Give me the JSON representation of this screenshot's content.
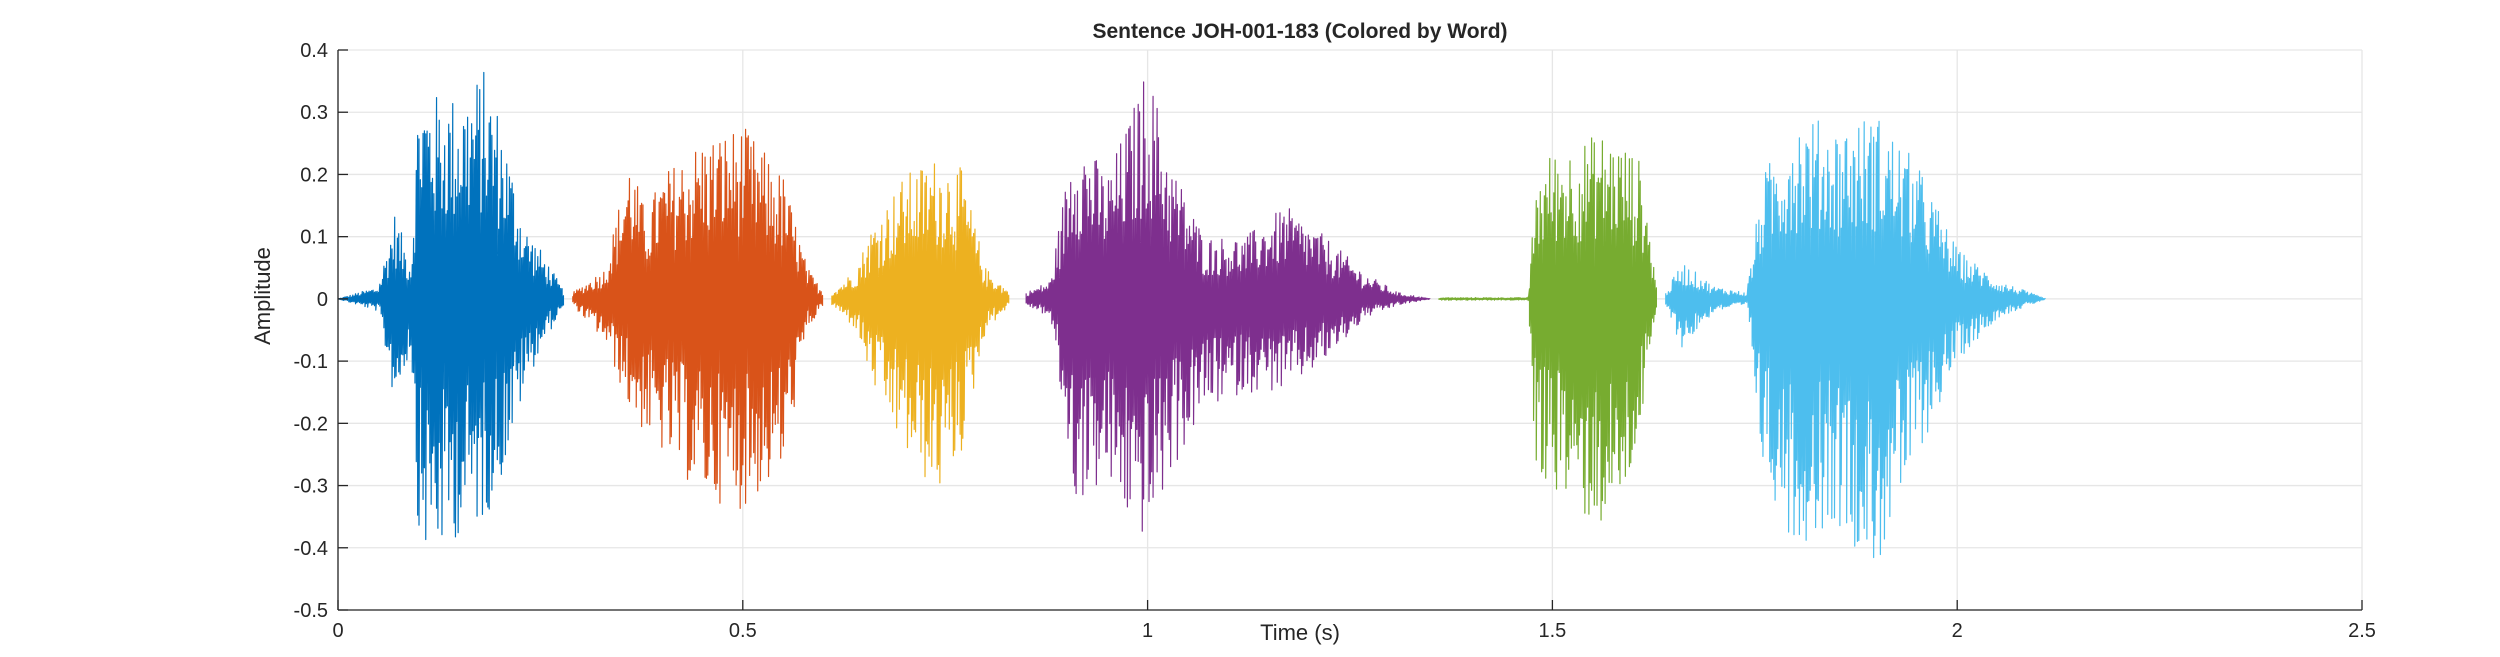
{
  "chart_data": {
    "type": "line",
    "title": "Sentence JOH-001-183 (Colored by Word)",
    "xlabel": "Time (s)",
    "ylabel": "Amplitude",
    "xlim": [
      0,
      2.5
    ],
    "ylim": [
      -0.5,
      0.4
    ],
    "xticks": [
      0,
      0.5,
      1,
      1.5,
      2,
      2.5
    ],
    "xtick_labels": [
      "0",
      "0.5",
      "1",
      "1.5",
      "2",
      "2.5"
    ],
    "yticks": [
      0.4,
      0.3,
      0.2,
      0.1,
      0,
      -0.1,
      -0.2,
      -0.3,
      -0.4,
      -0.5
    ],
    "ytick_labels": [
      "0.4",
      "0.3",
      "0.2",
      "0.1",
      "0",
      "-0.1",
      "-0.2",
      "-0.3",
      "-0.4",
      "-0.5"
    ],
    "grid": true,
    "series": [
      {
        "color": "#0072BD",
        "start": 0.0,
        "end": 0.28,
        "envelope": [
          [
            0.0,
            0.0,
            0.0
          ],
          [
            0.05,
            0.02,
            -0.02
          ],
          [
            0.07,
            0.14,
            -0.17
          ],
          [
            0.09,
            0.06,
            -0.08
          ],
          [
            0.1,
            0.35,
            -0.4
          ],
          [
            0.12,
            0.33,
            -0.42
          ],
          [
            0.15,
            0.33,
            -0.38
          ],
          [
            0.18,
            0.37,
            -0.36
          ],
          [
            0.2,
            0.3,
            -0.3
          ],
          [
            0.23,
            0.12,
            -0.15
          ],
          [
            0.25,
            0.08,
            -0.08
          ],
          [
            0.28,
            0.01,
            -0.01
          ]
        ]
      },
      {
        "color": "#D95319",
        "start": 0.29,
        "end": 0.6,
        "envelope": [
          [
            0.29,
            0.01,
            -0.01
          ],
          [
            0.33,
            0.05,
            -0.07
          ],
          [
            0.36,
            0.23,
            -0.18
          ],
          [
            0.38,
            0.14,
            -0.22
          ],
          [
            0.4,
            0.2,
            -0.25
          ],
          [
            0.45,
            0.26,
            -0.32
          ],
          [
            0.5,
            0.28,
            -0.34
          ],
          [
            0.55,
            0.2,
            -0.28
          ],
          [
            0.58,
            0.05,
            -0.05
          ],
          [
            0.6,
            0.01,
            -0.01
          ]
        ]
      },
      {
        "color": "#EDB120",
        "start": 0.61,
        "end": 0.83,
        "envelope": [
          [
            0.61,
            0.01,
            -0.01
          ],
          [
            0.64,
            0.05,
            -0.05
          ],
          [
            0.66,
            0.12,
            -0.14
          ],
          [
            0.7,
            0.2,
            -0.25
          ],
          [
            0.74,
            0.23,
            -0.32
          ],
          [
            0.77,
            0.21,
            -0.25
          ],
          [
            0.8,
            0.05,
            -0.05
          ],
          [
            0.83,
            0.01,
            -0.01
          ]
        ]
      },
      {
        "color": "#7E2F8E",
        "start": 0.85,
        "end": 1.35,
        "envelope": [
          [
            0.85,
            0.01,
            -0.01
          ],
          [
            0.88,
            0.03,
            -0.03
          ],
          [
            0.91,
            0.28,
            -0.33
          ],
          [
            0.95,
            0.2,
            -0.3
          ],
          [
            0.98,
            0.3,
            -0.37
          ],
          [
            1.0,
            0.38,
            -0.39
          ],
          [
            1.03,
            0.22,
            -0.28
          ],
          [
            1.07,
            0.1,
            -0.18
          ],
          [
            1.12,
            0.1,
            -0.15
          ],
          [
            1.17,
            0.15,
            -0.15
          ],
          [
            1.22,
            0.1,
            -0.1
          ],
          [
            1.27,
            0.04,
            -0.03
          ],
          [
            1.31,
            0.01,
            -0.01
          ],
          [
            1.35,
            0.0,
            0.0
          ]
        ]
      },
      {
        "color": "#77AC30",
        "start": 1.36,
        "end": 1.63,
        "envelope": [
          [
            1.36,
            0.002,
            -0.002
          ],
          [
            1.47,
            0.002,
            -0.002
          ],
          [
            1.48,
            0.2,
            -0.3
          ],
          [
            1.5,
            0.24,
            -0.3
          ],
          [
            1.53,
            0.25,
            -0.35
          ],
          [
            1.56,
            0.27,
            -0.37
          ],
          [
            1.59,
            0.25,
            -0.33
          ],
          [
            1.61,
            0.22,
            -0.2
          ],
          [
            1.63,
            0.01,
            -0.01
          ]
        ]
      },
      {
        "color": "#4DBEEE",
        "start": 1.64,
        "end": 2.11,
        "envelope": [
          [
            1.64,
            0.01,
            -0.01
          ],
          [
            1.66,
            0.06,
            -0.08
          ],
          [
            1.7,
            0.02,
            -0.02
          ],
          [
            1.74,
            0.01,
            -0.01
          ],
          [
            1.76,
            0.2,
            -0.28
          ],
          [
            1.8,
            0.3,
            -0.4
          ],
          [
            1.85,
            0.28,
            -0.36
          ],
          [
            1.9,
            0.3,
            -0.44
          ],
          [
            1.95,
            0.22,
            -0.26
          ],
          [
            2.0,
            0.08,
            -0.1
          ],
          [
            2.05,
            0.03,
            -0.03
          ],
          [
            2.11,
            0.0,
            0.0
          ]
        ]
      }
    ]
  }
}
